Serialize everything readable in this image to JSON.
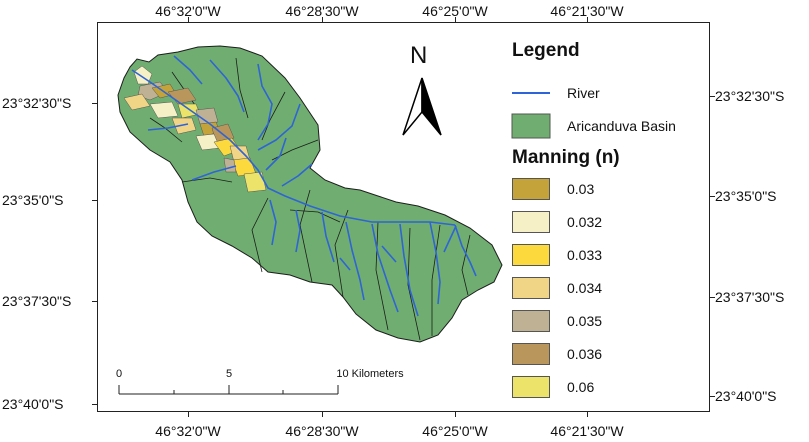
{
  "coordinates": {
    "longitude_labels": [
      "46°32'0\"W",
      "46°28'30\"W",
      "46°25'0\"W",
      "46°21'30\"W"
    ],
    "latitude_labels": [
      "23°32'30\"S",
      "23°35'0\"S",
      "23°37'30\"S",
      "23°40'0\"S"
    ]
  },
  "north_arrow": {
    "label": "N"
  },
  "legend": {
    "title": "Legend",
    "river_label": "River",
    "basin_label": "Aricanduva Basin",
    "manning_title": "Manning (n)",
    "manning_classes": [
      {
        "value": "0.03",
        "color": "#c4a33a"
      },
      {
        "value": "0.032",
        "color": "#f6f0c6"
      },
      {
        "value": "0.033",
        "color": "#fcd93d"
      },
      {
        "value": "0.034",
        "color": "#f1d587"
      },
      {
        "value": "0.035",
        "color": "#bfb194"
      },
      {
        "value": "0.036",
        "color": "#b9965b"
      },
      {
        "value": "0.06",
        "color": "#ece36b"
      }
    ]
  },
  "scale_bar": {
    "ticks": [
      "0",
      "5",
      "10 Kilometers"
    ]
  },
  "colors": {
    "basin": "#6fae70",
    "river": "#2f64d6",
    "subbasin_line": "#1d1d1d"
  }
}
